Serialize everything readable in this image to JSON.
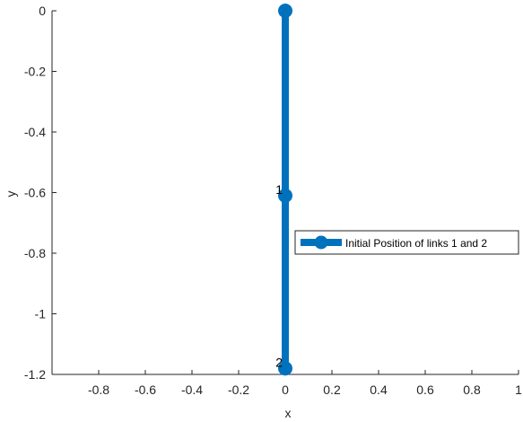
{
  "chart_data": {
    "type": "line",
    "xlabel": "x",
    "ylabel": "y",
    "xlim": [
      -1,
      1
    ],
    "ylim": [
      -1.2,
      0
    ],
    "xticks": [
      -0.8,
      -0.6,
      -0.4,
      -0.2,
      0,
      0.2,
      0.4,
      0.6,
      0.8,
      1
    ],
    "xtick_labels": [
      "-0.8",
      "-0.6",
      "-0.4",
      "-0.2",
      "0",
      "0.2",
      "0.4",
      "0.6",
      "0.8",
      "1"
    ],
    "yticks": [
      0,
      -0.2,
      -0.4,
      -0.6,
      -0.8,
      -1,
      -1.2
    ],
    "ytick_labels": [
      "0",
      "-0.2",
      "-0.4",
      "-0.6",
      "-0.8",
      "-1",
      "-1.2"
    ],
    "grid": false,
    "legend_position": "right",
    "series": [
      {
        "name": "Initial Position of links 1 and 2",
        "color": "#0072BD",
        "x": [
          0,
          0,
          0
        ],
        "y": [
          0,
          -0.61,
          -1.18
        ]
      }
    ],
    "annotations": [
      {
        "text": "1",
        "x": 0,
        "y": -0.61
      },
      {
        "text": "2",
        "x": 0,
        "y": -1.18
      }
    ]
  }
}
